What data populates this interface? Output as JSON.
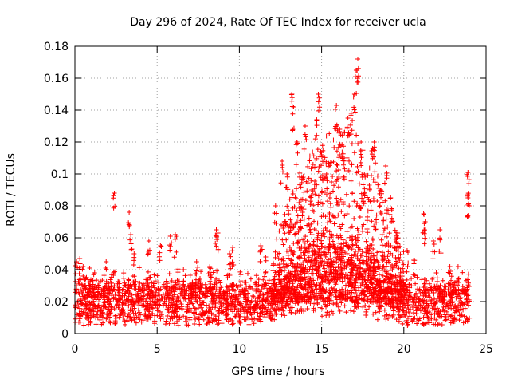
{
  "chart_data": {
    "type": "scatter",
    "title": "Day 296 of 2024, Rate Of TEC Index for receiver ucla",
    "xlabel": "GPS time / hours",
    "ylabel": "ROTI / TECUs",
    "xlim": [
      0,
      25
    ],
    "ylim": [
      0,
      0.18
    ],
    "x_ticks": [
      0,
      5,
      10,
      15,
      20,
      25
    ],
    "y_ticks": [
      0,
      0.02,
      0.04,
      0.06,
      0.08,
      0.1,
      0.12,
      0.14,
      0.16,
      0.18
    ],
    "x_tick_labels": [
      "0",
      "5",
      "10",
      "15",
      "20",
      "25"
    ],
    "y_tick_labels": [
      "0",
      "0.02",
      "0.04",
      "0.06",
      "0.08",
      "0.1",
      "0.12",
      "0.14",
      "0.16",
      "0.18"
    ],
    "grid": true,
    "marker": "+",
    "marker_color": "#ff0000",
    "series": [
      {
        "name": "ROTI",
        "points": [
          [
            0.1,
            0.045
          ],
          [
            0.3,
            0.047
          ],
          [
            0.5,
            0.042
          ],
          [
            0.9,
            0.041
          ],
          [
            1.2,
            0.038
          ],
          [
            1.9,
            0.045
          ],
          [
            2.4,
            0.088
          ],
          [
            3.3,
            0.076
          ],
          [
            3.4,
            0.062
          ],
          [
            3.6,
            0.05
          ],
          [
            4.5,
            0.058
          ],
          [
            5.2,
            0.055
          ],
          [
            5.8,
            0.061
          ],
          [
            6.1,
            0.062
          ],
          [
            6.6,
            0.04
          ],
          [
            7.4,
            0.045
          ],
          [
            8.2,
            0.042
          ],
          [
            8.6,
            0.065
          ],
          [
            8.7,
            0.063
          ],
          [
            9.4,
            0.05
          ],
          [
            9.6,
            0.054
          ],
          [
            10.4,
            0.032
          ],
          [
            11.3,
            0.055
          ],
          [
            11.6,
            0.048
          ],
          [
            12.2,
            0.08
          ],
          [
            12.6,
            0.108
          ],
          [
            12.9,
            0.1
          ],
          [
            13.2,
            0.15
          ],
          [
            13.3,
            0.142
          ],
          [
            13.5,
            0.12
          ],
          [
            13.8,
            0.098
          ],
          [
            14.0,
            0.13
          ],
          [
            14.4,
            0.09
          ],
          [
            14.7,
            0.134
          ],
          [
            14.8,
            0.15
          ],
          [
            15.0,
            0.112
          ],
          [
            15.3,
            0.1
          ],
          [
            15.5,
            0.085
          ],
          [
            15.9,
            0.143
          ],
          [
            16.1,
            0.128
          ],
          [
            16.3,
            0.11
          ],
          [
            16.6,
            0.135
          ],
          [
            16.8,
            0.138
          ],
          [
            17.0,
            0.15
          ],
          [
            17.1,
            0.165
          ],
          [
            17.2,
            0.172
          ],
          [
            17.4,
            0.12
          ],
          [
            17.6,
            0.1
          ],
          [
            17.9,
            0.093
          ],
          [
            18.1,
            0.116
          ],
          [
            18.2,
            0.12
          ],
          [
            18.6,
            0.09
          ],
          [
            18.9,
            0.105
          ],
          [
            19.2,
            0.085
          ],
          [
            19.6,
            0.06
          ],
          [
            20.2,
            0.052
          ],
          [
            20.6,
            0.046
          ],
          [
            21.2,
            0.075
          ],
          [
            21.3,
            0.07
          ],
          [
            21.8,
            0.058
          ],
          [
            22.2,
            0.065
          ],
          [
            22.8,
            0.042
          ],
          [
            23.3,
            0.042
          ],
          [
            23.9,
            0.101
          ],
          [
            23.95,
            0.094
          ],
          [
            23.9,
            0.085
          ]
        ],
        "baseline_band": [
          0.005,
          0.03
        ]
      }
    ]
  }
}
